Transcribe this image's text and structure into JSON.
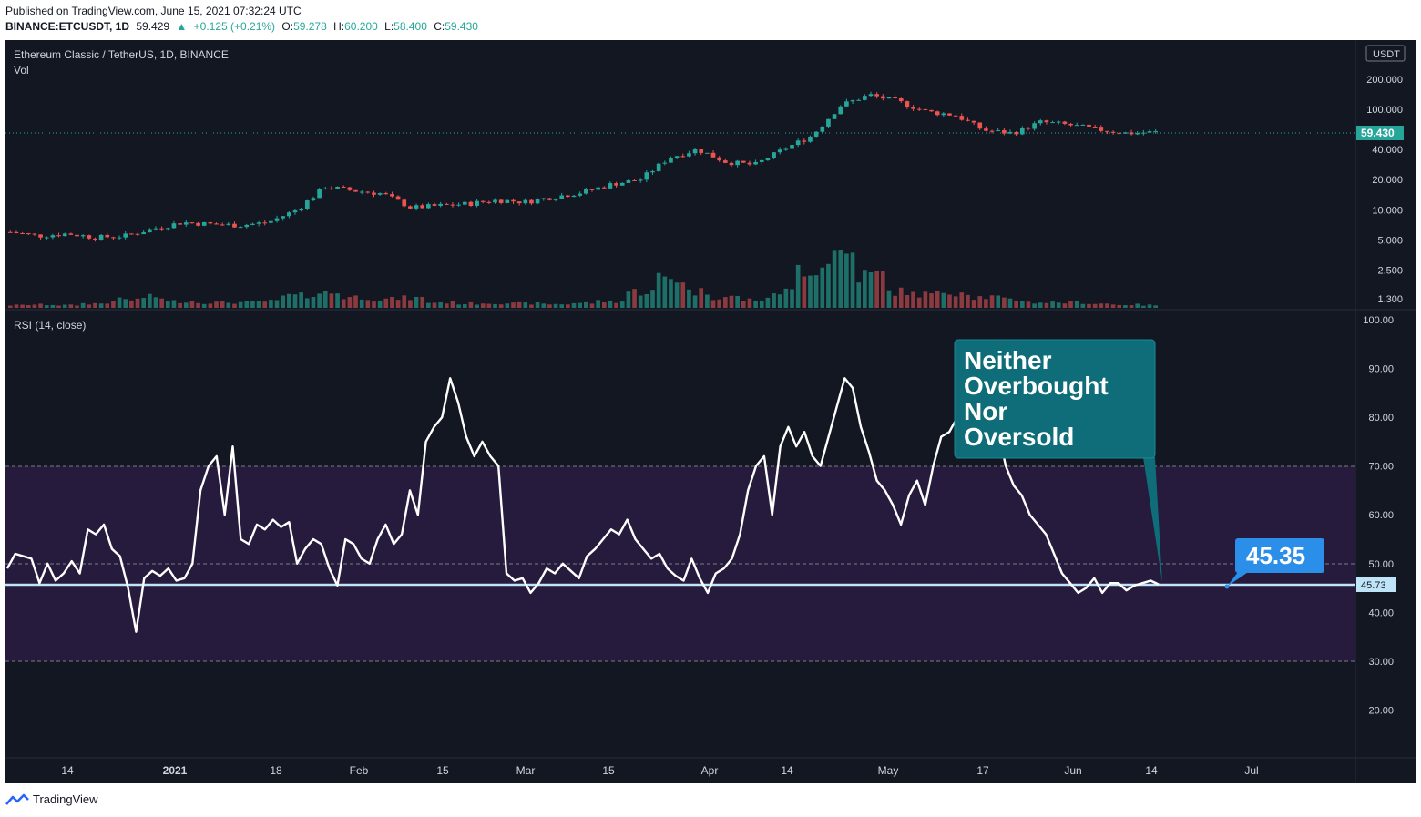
{
  "header": {
    "published": "Published on TradingView.com, June 15, 2021 07:32:24 UTC",
    "symbol": "BINANCE:ETCUSDT, 1D",
    "last": "59.429",
    "change": "+0.125 (+0.21%)",
    "o_label": "O:",
    "o": "59.278",
    "h_label": "H:",
    "h": "60.200",
    "l_label": "L:",
    "l": "58.400",
    "c_label": "C:",
    "c": "59.430"
  },
  "price_pane": {
    "title": "Ethereum Classic / TetherUS, 1D, BINANCE",
    "volume_label": "Vol",
    "currency": "USDT",
    "last_price_tag": "59.430",
    "axis_ticks": [
      "200.000",
      "100.000",
      "40.000",
      "20.000",
      "10.000",
      "5.000",
      "2.500",
      "1.300"
    ]
  },
  "rsi_pane": {
    "title": "RSI (14, close)",
    "value_tag": "45.73",
    "axis_ticks": [
      "100.00",
      "90.00",
      "80.00",
      "70.00",
      "60.00",
      "50.00",
      "40.00",
      "30.00",
      "20.00"
    ]
  },
  "x_axis": {
    "ticks": [
      "14",
      "2021",
      "18",
      "Feb",
      "15",
      "Mar",
      "15",
      "Apr",
      "14",
      "May",
      "17",
      "Jun",
      "14",
      "Jul"
    ]
  },
  "annotations": {
    "callout_text": [
      "Neither",
      "Overbought",
      "Nor",
      "Oversold"
    ],
    "value_callout": "45.35"
  },
  "footer": {
    "brand": "TradingView"
  },
  "colors": {
    "background": "#131722",
    "up": "#26a69a",
    "down": "#ef5350",
    "rsi_line": "#ffffff",
    "rsi_band": "#261b3c",
    "callout": "#0e6d78",
    "value_callout": "#2b8ee8",
    "hline": "#bfe3f7"
  },
  "chart_data": [
    {
      "type": "line",
      "title": "Ethereum Classic / TetherUS, 1D, BINANCE",
      "description_series": "Close (candlesticks, log scale)",
      "scale": "log",
      "x": [
        "2020-12-05",
        "2020-12-14",
        "2020-12-21",
        "2020-12-28",
        "2021-01-01",
        "2021-01-06",
        "2021-01-10",
        "2021-01-18",
        "2021-01-25",
        "2021-02-01",
        "2021-02-08",
        "2021-02-12",
        "2021-02-15",
        "2021-02-20",
        "2021-02-24",
        "2021-03-01",
        "2021-03-08",
        "2021-03-15",
        "2021-03-22",
        "2021-03-29",
        "2021-04-01",
        "2021-04-07",
        "2021-04-12",
        "2021-04-14",
        "2021-04-16",
        "2021-04-20",
        "2021-04-25",
        "2021-04-30",
        "2021-05-03",
        "2021-05-05",
        "2021-05-07",
        "2021-05-10",
        "2021-05-14",
        "2021-05-17",
        "2021-05-19",
        "2021-05-23",
        "2021-05-26",
        "2021-06-01",
        "2021-06-07",
        "2021-06-10",
        "2021-06-14"
      ],
      "series": [
        {
          "name": "Close",
          "values": [
            6.0,
            5.5,
            5.8,
            5.3,
            5.5,
            6.5,
            7.5,
            7.2,
            7.0,
            7.5,
            10,
            17,
            15.5,
            14.5,
            10.5,
            11.0,
            11.5,
            12.5,
            12.0,
            13.5,
            15,
            18,
            20,
            33,
            40,
            30,
            28,
            40,
            55,
            110,
            140,
            120,
            95,
            88,
            62,
            58,
            75,
            70,
            63,
            58,
            59.43
          ]
        }
      ],
      "ylim": [
        1.3,
        230
      ]
    },
    {
      "type": "bar",
      "title": "Vol",
      "x_range": [
        "2020-12-05",
        "2021-06-14"
      ],
      "series": [
        {
          "name": "Vol",
          "values_relative": [
            0.05,
            0.06,
            0.05,
            0.08,
            0.15,
            0.2,
            0.12,
            0.1,
            0.1,
            0.12,
            0.22,
            0.28,
            0.2,
            0.16,
            0.18,
            0.1,
            0.08,
            0.09,
            0.08,
            0.07,
            0.09,
            0.12,
            0.3,
            0.55,
            0.3,
            0.2,
            0.15,
            0.3,
            0.75,
            1.0,
            0.6,
            0.3,
            0.25,
            0.3,
            0.2,
            0.15,
            0.1,
            0.1,
            0.08,
            0.06,
            0.05
          ]
        }
      ]
    },
    {
      "type": "line",
      "title": "RSI (14, close)",
      "ylim": [
        13,
        102
      ],
      "bands": {
        "upper": 70,
        "middle": 50,
        "lower": 30
      },
      "horizontal_line": 45.73,
      "x_range": [
        "2020-12-05",
        "2021-06-14"
      ],
      "series": [
        {
          "name": "RSI (14, close)",
          "values": [
            49,
            52,
            51.5,
            51,
            46,
            50,
            46.5,
            48,
            50.5,
            48,
            57,
            56,
            58,
            53,
            51.5,
            45,
            36,
            47,
            48.5,
            47.5,
            49,
            46.5,
            47,
            50,
            65,
            70,
            72,
            60,
            74,
            55,
            54,
            58,
            57,
            59,
            57.5,
            58.5,
            50,
            53,
            55,
            54,
            49,
            45.5,
            55,
            54,
            51,
            50,
            55,
            58,
            54,
            56,
            65,
            60,
            75,
            78,
            80,
            88,
            83,
            76,
            72,
            75,
            72,
            70,
            48,
            46.5,
            47,
            44,
            46,
            49,
            48,
            50,
            48.5,
            47,
            51.5,
            53,
            55,
            57,
            56,
            59,
            55,
            53,
            51,
            52,
            49,
            47.5,
            46.5,
            51,
            47,
            44,
            48,
            49,
            51,
            56,
            65,
            70,
            72,
            60,
            74,
            78,
            74,
            77,
            72,
            70,
            76,
            82,
            88,
            86,
            78,
            73,
            67,
            65,
            62,
            58,
            64,
            67,
            62,
            70,
            76,
            77,
            80,
            92,
            94,
            86,
            84,
            78,
            70,
            66,
            64,
            60,
            58,
            56,
            52,
            48,
            46,
            44,
            45,
            47,
            44,
            46,
            46,
            44.5,
            45.5,
            46,
            46.5,
            45.73
          ]
        }
      ]
    }
  ]
}
